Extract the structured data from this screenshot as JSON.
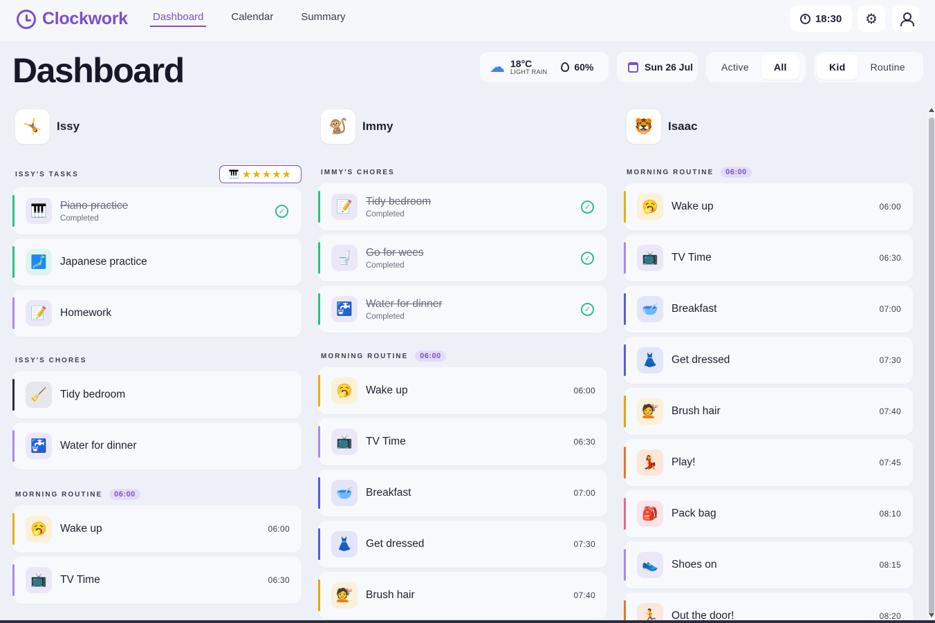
{
  "app": {
    "name": "Clockwork"
  },
  "nav": [
    "Dashboard",
    "Calendar",
    "Summary"
  ],
  "header": {
    "time": "18:30"
  },
  "page_title": "Dashboard",
  "weather": {
    "temp": "18°C",
    "desc": "LIGHT RAIN",
    "humidity": "60%"
  },
  "date": "Sun 26 Jul",
  "filters": {
    "status": [
      "Active",
      "All"
    ],
    "status_selected": "All",
    "view": [
      "Kid",
      "Routine"
    ],
    "view_selected": "Kid"
  },
  "kids": [
    {
      "name": "Issy",
      "avatar": "🤸",
      "sections": [
        {
          "label": "ISSY'S TASKS",
          "rating": "★★★★★",
          "rating_icon": "🎹",
          "items": [
            {
              "title": "Piano practice",
              "status": "Completed",
              "done": true,
              "icon": "🎹",
              "color": "#2bbf8a",
              "icon_bg": "#ece7f7"
            },
            {
              "title": "Japanese practice",
              "icon": "🗾",
              "color": "#2bbf8a",
              "icon_bg": "#e0f4ec"
            },
            {
              "title": "Homework",
              "icon": "📝",
              "color": "#a98be8",
              "icon_bg": "#ece7f7"
            }
          ]
        },
        {
          "label": "ISSY'S CHORES",
          "items": [
            {
              "title": "Tidy bedroom",
              "icon": "🧹",
              "color": "#2a2d3c",
              "icon_bg": "#e6e7ec"
            },
            {
              "title": "Water for dinner",
              "icon": "🚰",
              "color": "#a98be8",
              "icon_bg": "#ece7f7"
            }
          ]
        },
        {
          "label": "MORNING ROUTINE",
          "badge": "06:00",
          "items": [
            {
              "title": "Wake up",
              "time": "06:00",
              "icon": "🥱",
              "color": "#e8b100",
              "icon_bg": "#fbf0d8"
            },
            {
              "title": "TV Time",
              "time": "06:30",
              "icon": "📺",
              "color": "#a98be8",
              "icon_bg": "#ece7f7"
            }
          ]
        }
      ]
    },
    {
      "name": "Immy",
      "avatar": "🐒",
      "sections": [
        {
          "label": "IMMY'S CHORES",
          "items": [
            {
              "title": "Tidy bedroom",
              "status": "Completed",
              "done": true,
              "icon": "📝",
              "color": "#2bbf8a",
              "icon_bg": "#ece7f7"
            },
            {
              "title": "Go for wees",
              "status": "Completed",
              "done": true,
              "icon": "🚽",
              "color": "#2bbf8a",
              "icon_bg": "#ece7f7"
            },
            {
              "title": "Water for dinner",
              "status": "Completed",
              "done": true,
              "icon": "🚰",
              "color": "#2bbf8a",
              "icon_bg": "#ece7f7"
            }
          ]
        },
        {
          "label": "MORNING ROUTINE",
          "badge": "06:00",
          "items": [
            {
              "title": "Wake up",
              "time": "06:00",
              "icon": "🥱",
              "color": "#e8b100",
              "icon_bg": "#fbf0d8"
            },
            {
              "title": "TV Time",
              "time": "06:30",
              "icon": "📺",
              "color": "#a98be8",
              "icon_bg": "#ece7f7"
            },
            {
              "title": "Breakfast",
              "time": "07:00",
              "icon": "🥣",
              "color": "#5b5bd6",
              "icon_bg": "#e3e5f8"
            },
            {
              "title": "Get dressed",
              "time": "07:30",
              "icon": "👗",
              "color": "#5b5bd6",
              "icon_bg": "#e3e5f8"
            },
            {
              "title": "Brush hair",
              "time": "07:40",
              "icon": "💇",
              "color": "#e8a400",
              "icon_bg": "#fbf0d8"
            }
          ]
        }
      ]
    },
    {
      "name": "Isaac",
      "avatar": "🐯",
      "sections": [
        {
          "label": "MORNING ROUTINE",
          "badge": "06:00",
          "items": [
            {
              "title": "Wake up",
              "time": "06:00",
              "icon": "🥱",
              "color": "#e8b100",
              "icon_bg": "#fbf0d8"
            },
            {
              "title": "TV Time",
              "time": "06:30",
              "icon": "📺",
              "color": "#a98be8",
              "icon_bg": "#ece7f7"
            },
            {
              "title": "Breakfast",
              "time": "07:00",
              "icon": "🥣",
              "color": "#5b5bd6",
              "icon_bg": "#e3e5f8"
            },
            {
              "title": "Get dressed",
              "time": "07:30",
              "icon": "👗",
              "color": "#5b5bd6",
              "icon_bg": "#e3e5f8"
            },
            {
              "title": "Brush hair",
              "time": "07:40",
              "icon": "💇",
              "color": "#e8a400",
              "icon_bg": "#fbf0d8"
            },
            {
              "title": "Play!",
              "time": "07:45",
              "icon": "💃",
              "color": "#e8742b",
              "icon_bg": "#fbe7dc"
            },
            {
              "title": "Pack bag",
              "time": "08:10",
              "icon": "🎒",
              "color": "#e46a8a",
              "icon_bg": "#fbe3ea"
            },
            {
              "title": "Shoes on",
              "time": "08:15",
              "icon": "👟",
              "color": "#a98be8",
              "icon_bg": "#ece7f7"
            },
            {
              "title": "Out the door!",
              "time": "08:20",
              "icon": "🏃",
              "color": "#e8742b",
              "icon_bg": "#fbe7dc"
            }
          ]
        }
      ]
    }
  ]
}
